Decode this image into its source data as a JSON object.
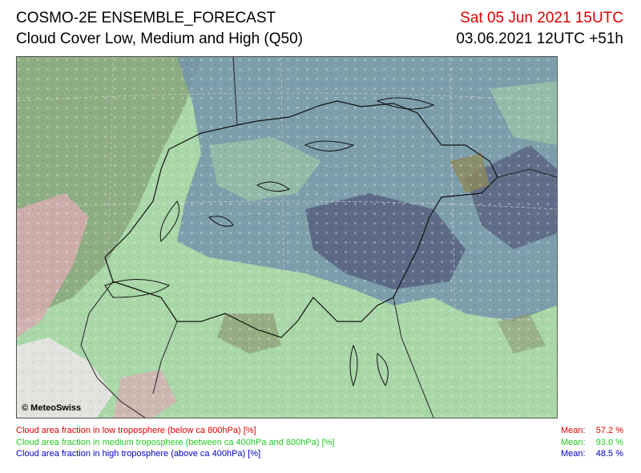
{
  "header": {
    "title": "COSMO-2E ENSEMBLE_FORECAST",
    "subtitle": "Cloud Cover Low, Medium and High (Q50)",
    "valid_time": "Sat 05 Jun 2021 15UTC",
    "run_time": "03.06.2021 12UTC +51h"
  },
  "map": {
    "copyright": "© MeteoSwiss"
  },
  "legend": [
    {
      "label": "Cloud area fraction in low troposphere (below ca 800hPa) [%]",
      "mean_label": "Mean:",
      "mean_value": "57.2 %",
      "color": "#e00000"
    },
    {
      "label": "Cloud area fraction in medium troposphere (between ca 400hPa and 800hPa) [%]",
      "mean_label": "Mean:",
      "mean_value": "93.0 %",
      "color": "#22cc22"
    },
    {
      "label": "Cloud area fraction in high troposphere (above ca 400hPa) [%]",
      "mean_label": "Mean:",
      "mean_value": "48.5 %",
      "color": "#0000cc"
    }
  ],
  "colors": {
    "low_cloud": "#e00000",
    "medium_cloud": "#22cc22",
    "high_cloud": "#0000cc",
    "map_green": "#a8d6a8",
    "map_blue": "#6f8fa8",
    "map_dark": "#4f5570",
    "map_pink": "#d8aab0"
  }
}
